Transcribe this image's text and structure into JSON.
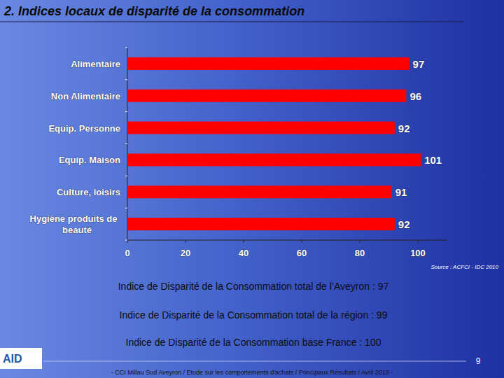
{
  "chart_data": {
    "type": "bar",
    "orientation": "horizontal",
    "title": "2. Indices locaux de disparité de la consommation",
    "categories": [
      "Alimentaire",
      "Non Alimentaire",
      "Equip. Personne",
      "Equip. Maison",
      "Culture, loisirs",
      "Hygiène produits de beauté"
    ],
    "values": [
      97,
      96,
      92,
      101,
      91,
      92
    ],
    "color": "#ff0000",
    "xlim": [
      0,
      110
    ],
    "xticks": [
      0,
      20,
      40,
      60,
      80,
      100
    ],
    "data_labels": true,
    "grid": false,
    "source": "Source : ACFCI - IDC 2010"
  },
  "notes": [
    "Indice de Disparité de la Consommation total de l’Aveyron : 97",
    "Indice de Disparité de la Consommation total de la région : 99",
    "Indice de Disparité de la Consommation base France : 100"
  ],
  "logo": "AID",
  "page_number": "9",
  "footer": "- CCI Millau Sud Aveyron /  Etude sur les comportements d'achats / Principaux Résultats / Avril 2010 -"
}
